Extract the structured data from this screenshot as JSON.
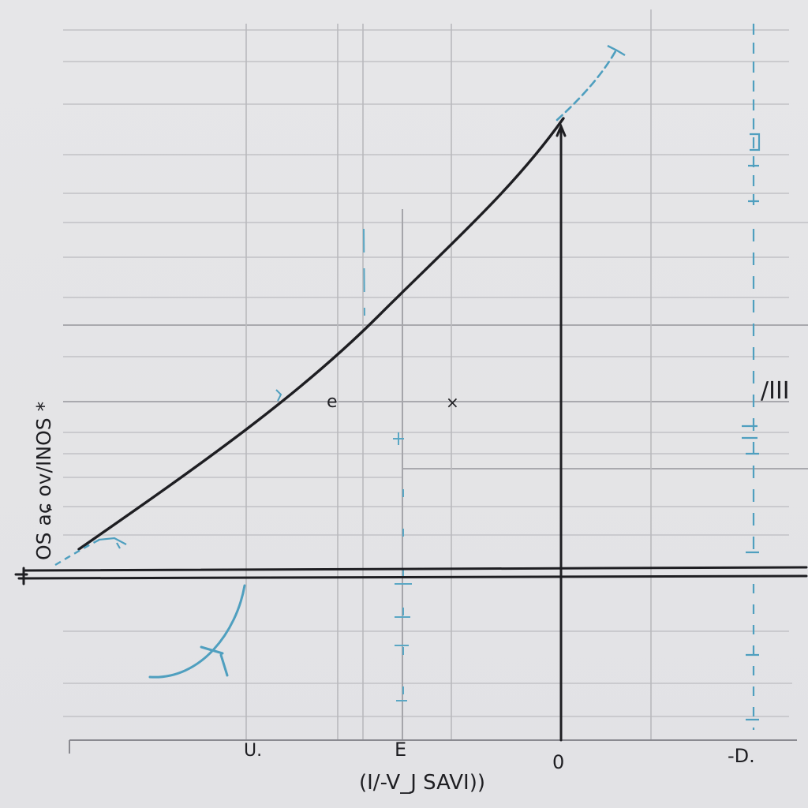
{
  "x_tick_labels": [
    "U.",
    "E",
    "0",
    "-D."
  ],
  "x_axis_label": "(I/-V_J SAVI))",
  "y_axis_label": "OS aɕ ov/INOS *",
  "right_label": "∕III",
  "point_labels": [
    "e",
    "×"
  ],
  "colors": {
    "ink": "#1e1e22",
    "blue_ink": "#4f9fbf",
    "grid": "#b9b9bd",
    "paper": "#e4e4e6"
  }
}
